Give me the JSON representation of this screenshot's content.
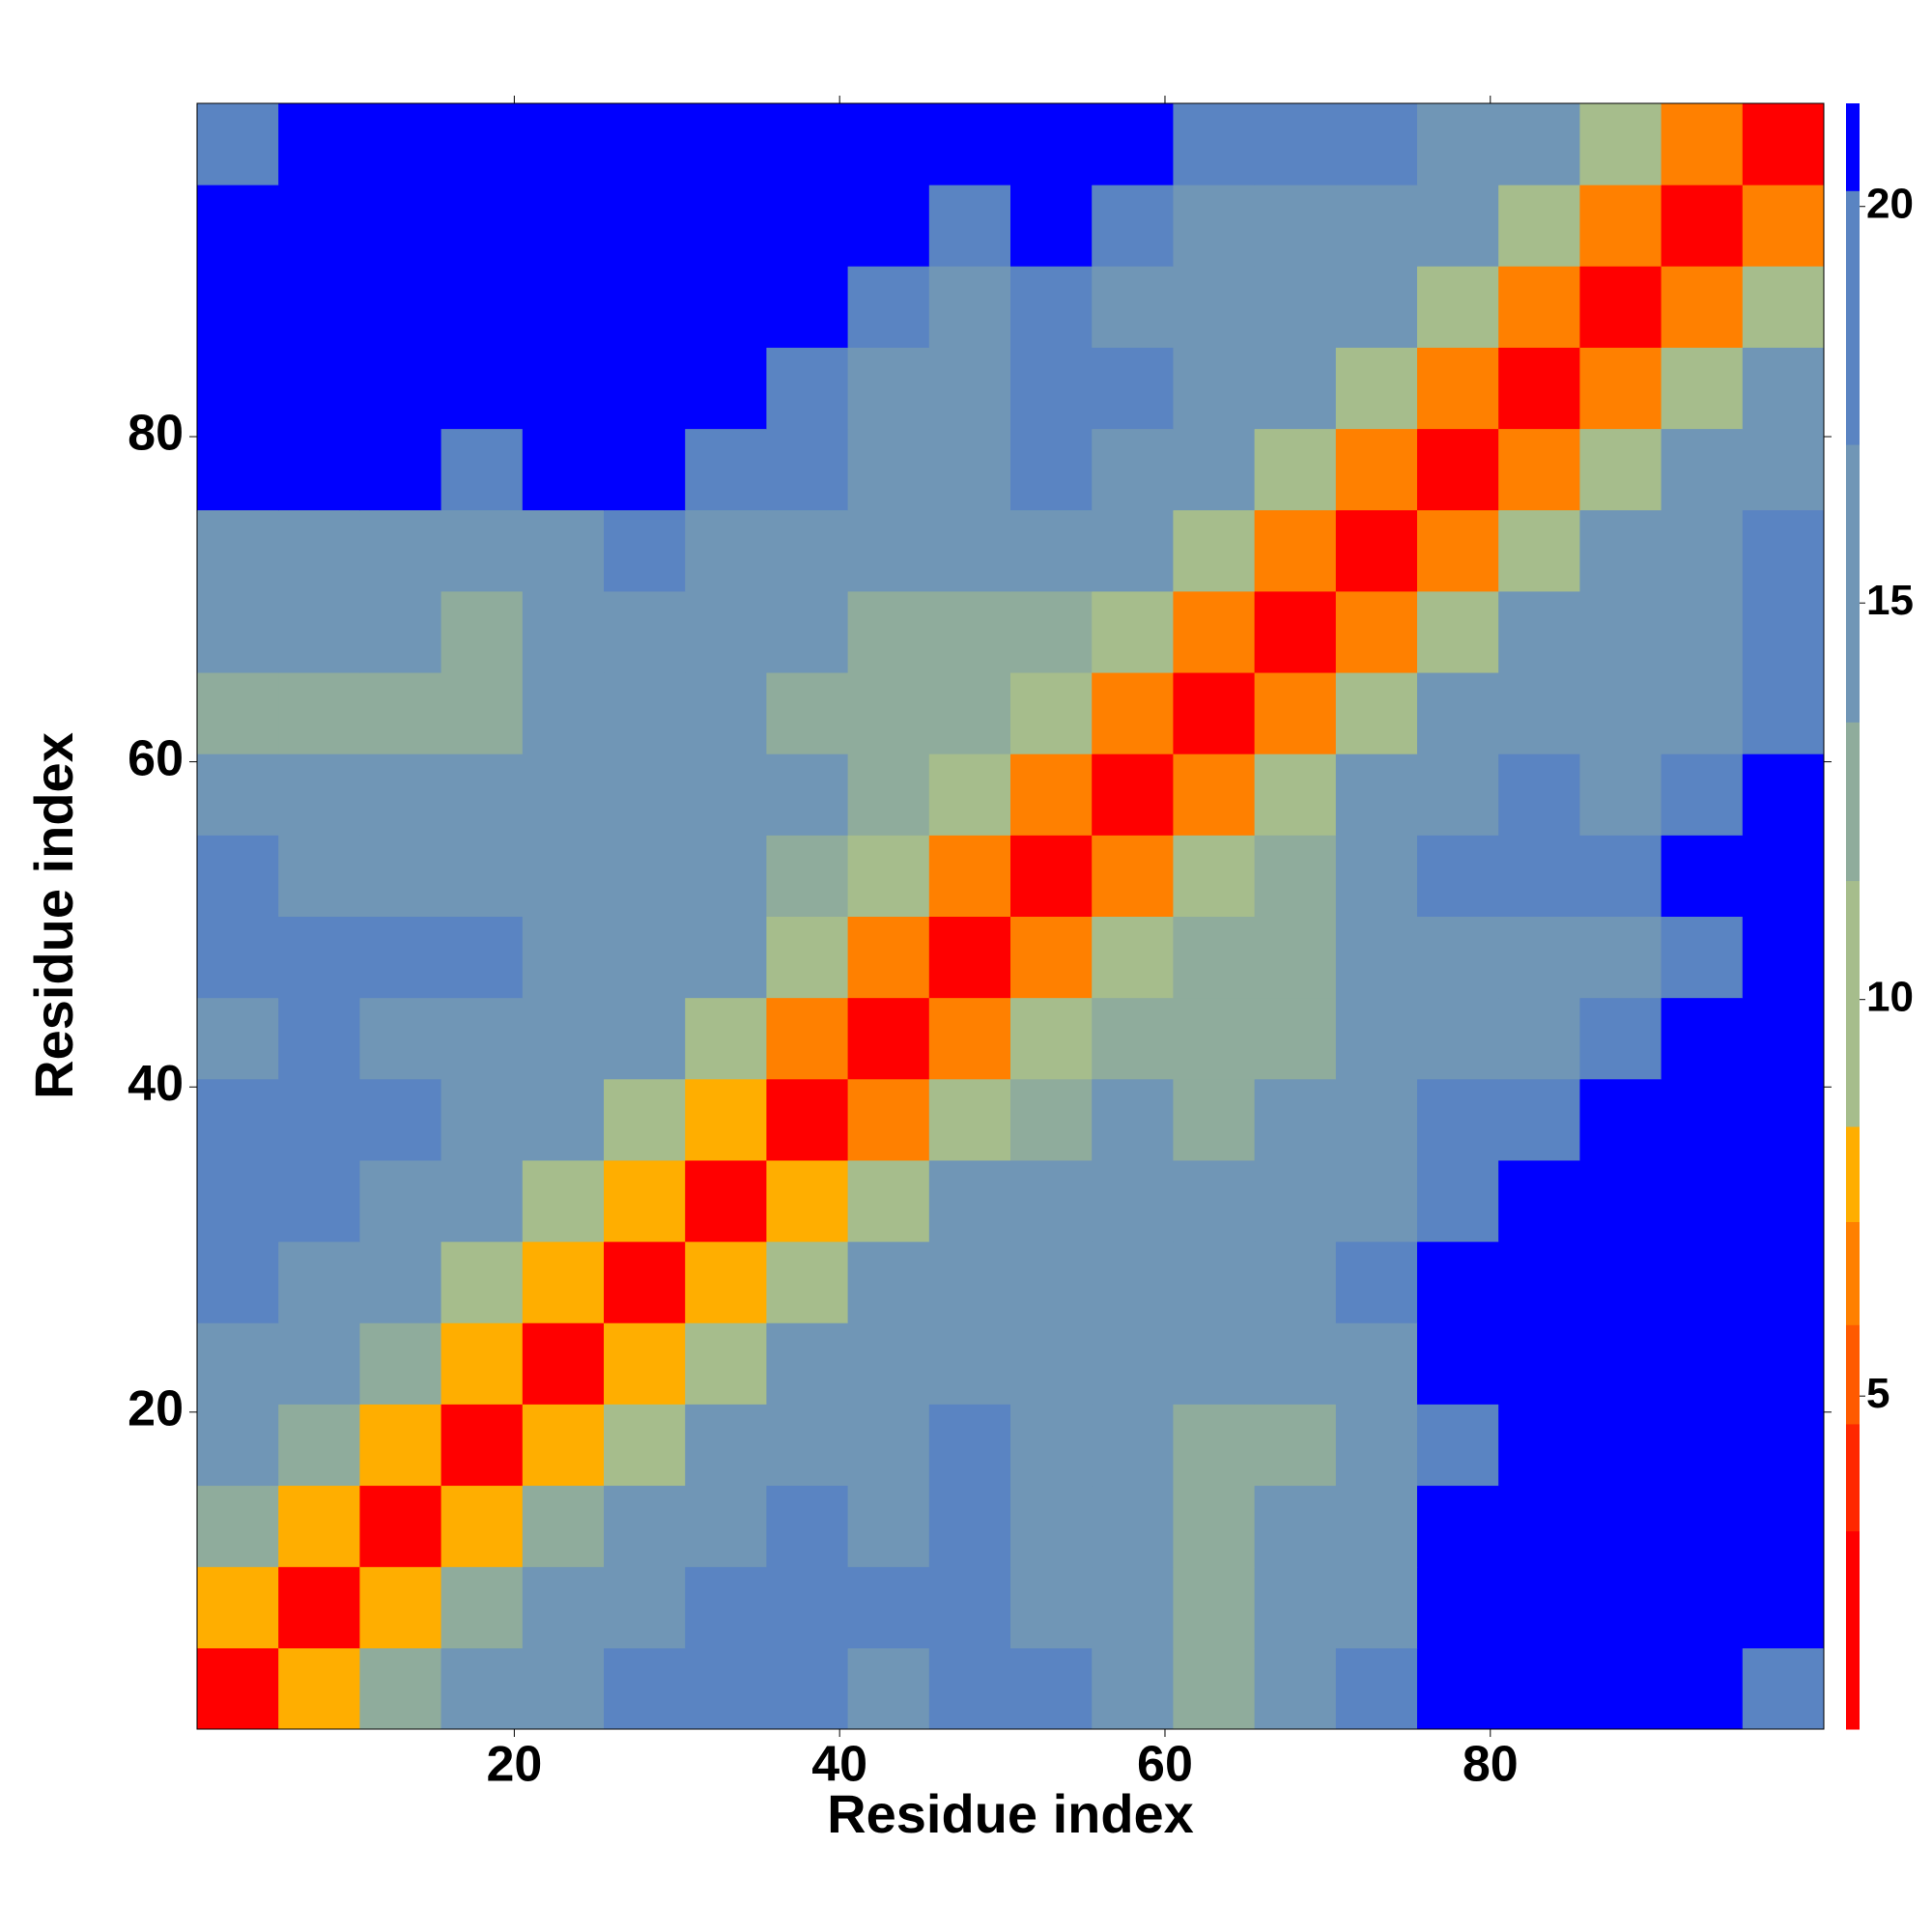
{
  "chart_data": {
    "type": "heatmap",
    "xlabel": "Residue index",
    "ylabel": "Residue index",
    "x": [
      3,
      8,
      13,
      18,
      23,
      28,
      33,
      38,
      43,
      48,
      53,
      58,
      63,
      68,
      73,
      78,
      83,
      88,
      93,
      98
    ],
    "y": [
      3,
      8,
      13,
      18,
      23,
      28,
      33,
      38,
      43,
      48,
      53,
      58,
      63,
      68,
      73,
      78,
      83,
      88,
      93,
      98
    ],
    "cell_size": 5,
    "z": [
      [
        3,
        8,
        12,
        15,
        17,
        18,
        19,
        20,
        17,
        19,
        18,
        15,
        13,
        16,
        18,
        22,
        22,
        22,
        22,
        20
      ],
      [
        8,
        3,
        8,
        12,
        15,
        17,
        18,
        19,
        19,
        20,
        17,
        14,
        12,
        14,
        17,
        22,
        22,
        22,
        22,
        22
      ],
      [
        12,
        8,
        3,
        8,
        12,
        15,
        17,
        18,
        17,
        19,
        17,
        15,
        13,
        14,
        17,
        21,
        22,
        22,
        22,
        22
      ],
      [
        15,
        12,
        8,
        3,
        8,
        11,
        15,
        17,
        16,
        18,
        17,
        14,
        12,
        13,
        16,
        20,
        22,
        22,
        22,
        22
      ],
      [
        17,
        15,
        12,
        8,
        3,
        8,
        11,
        14,
        16,
        17,
        17,
        16,
        14,
        15,
        17,
        21,
        22,
        22,
        22,
        22
      ],
      [
        18,
        17,
        15,
        11,
        8,
        3,
        8,
        11,
        14,
        16,
        17,
        17,
        16,
        17,
        18,
        21,
        22,
        22,
        22,
        22
      ],
      [
        19,
        18,
        17,
        15,
        11,
        8,
        3,
        8,
        11,
        14,
        15,
        16,
        15,
        16,
        17,
        20,
        21,
        22,
        22,
        22
      ],
      [
        20,
        19,
        18,
        17,
        14,
        11,
        8,
        3,
        7,
        11,
        13,
        14,
        13,
        14,
        16,
        18,
        19,
        21,
        22,
        22
      ],
      [
        17,
        19,
        17,
        16,
        16,
        14,
        11,
        7,
        3,
        7,
        10,
        12,
        12,
        13,
        15,
        16,
        17,
        19,
        21,
        22
      ],
      [
        19,
        20,
        19,
        18,
        17,
        16,
        14,
        11,
        7,
        3,
        7,
        11,
        12,
        12,
        14,
        15,
        15,
        17,
        20,
        22
      ],
      [
        18,
        17,
        17,
        17,
        17,
        17,
        15,
        13,
        10,
        7,
        3,
        7,
        11,
        13,
        16,
        19,
        20,
        19,
        21,
        22
      ],
      [
        15,
        14,
        15,
        14,
        16,
        17,
        16,
        14,
        12,
        11,
        7,
        3,
        7,
        11,
        14,
        17,
        19,
        16,
        19,
        21
      ],
      [
        13,
        12,
        13,
        12,
        14,
        16,
        15,
        13,
        12,
        12,
        11,
        7,
        3,
        7,
        11,
        14,
        16,
        15,
        17,
        20
      ],
      [
        14,
        14,
        14,
        13,
        15,
        17,
        16,
        14,
        13,
        12,
        13,
        11,
        7,
        3,
        7,
        11,
        14,
        15,
        16,
        19
      ],
      [
        17,
        17,
        17,
        16,
        17,
        18,
        17,
        16,
        15,
        14,
        16,
        14,
        11,
        7,
        3,
        7,
        11,
        14,
        16,
        18
      ],
      [
        21,
        22,
        21,
        20,
        21,
        21,
        20,
        18,
        16,
        15,
        19,
        17,
        14,
        11,
        7,
        3,
        7,
        11,
        14,
        16
      ],
      [
        22,
        22,
        22,
        22,
        22,
        22,
        21,
        19,
        17,
        15,
        20,
        19,
        16,
        14,
        11,
        7,
        3,
        7,
        11,
        14
      ],
      [
        22,
        22,
        22,
        22,
        22,
        22,
        22,
        21,
        19,
        17,
        19,
        16,
        15,
        15,
        14,
        11,
        7,
        3,
        7,
        11
      ],
      [
        22,
        22,
        22,
        22,
        22,
        22,
        22,
        22,
        21,
        20,
        21,
        19,
        17,
        16,
        16,
        14,
        11,
        7,
        3,
        6
      ],
      [
        20,
        22,
        22,
        22,
        22,
        22,
        22,
        22,
        22,
        22,
        22,
        21,
        20,
        19,
        18,
        16,
        14,
        11,
        6,
        3
      ]
    ],
    "xlim": [
      0.5,
      100.5
    ],
    "ylim": [
      0.5,
      100.5
    ],
    "xticks": [
      20,
      40,
      60,
      80
    ],
    "yticks": [
      20,
      40,
      60,
      80
    ],
    "colorbar": {
      "lim": [
        0.8,
        21.3
      ],
      "ticks": [
        5,
        10,
        15,
        20
      ],
      "bands": [
        {
          "max": 3.3,
          "color": "#ff0000"
        },
        {
          "max": 4.65,
          "color": "#ff2800"
        },
        {
          "max": 5.9,
          "color": "#ff5a00"
        },
        {
          "max": 7.2,
          "color": "#ff8000"
        },
        {
          "max": 8.4,
          "color": "#ffae00"
        },
        {
          "max": 11.5,
          "color": "#a6bd8c"
        },
        {
          "max": 13.5,
          "color": "#8fac9c"
        },
        {
          "max": 17,
          "color": "#7096b6"
        },
        {
          "max": 20.2,
          "color": "#5a84c2"
        },
        {
          "max": 21.3,
          "color": "#0000ff"
        }
      ]
    }
  }
}
